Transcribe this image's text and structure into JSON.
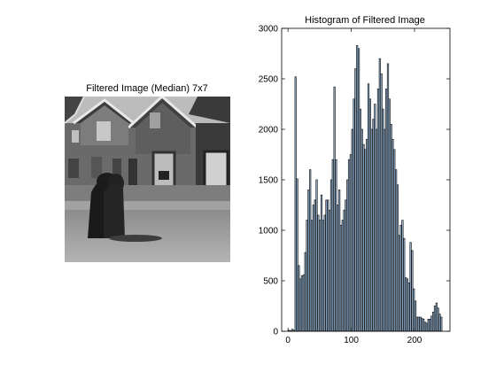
{
  "left_panel": {
    "title": "Filtered Image (Median) 7x7",
    "image_description": "grayscale street scene with gabled houses and two figures in dark cloaks"
  },
  "chart_data": {
    "type": "bar",
    "title": "Histogram of Filtered Image",
    "xlabel": "",
    "ylabel": "",
    "xlim": [
      -10,
      256
    ],
    "ylim": [
      0,
      3000
    ],
    "xticks": [
      0,
      100,
      200
    ],
    "yticks": [
      0,
      500,
      1000,
      1500,
      2000,
      2500,
      3000
    ],
    "bar_color": "#9fc3e6",
    "edge_color": "#1a1a1a",
    "bin_width": 2.56,
    "bins": [
      {
        "x": 2,
        "y": 10
      },
      {
        "x": 4.6,
        "y": 5
      },
      {
        "x": 7.1,
        "y": 20
      },
      {
        "x": 9.7,
        "y": 10
      },
      {
        "x": 12.2,
        "y": 2520
      },
      {
        "x": 14.8,
        "y": 1510
      },
      {
        "x": 17.4,
        "y": 650
      },
      {
        "x": 19.9,
        "y": 520
      },
      {
        "x": 22.5,
        "y": 550
      },
      {
        "x": 25,
        "y": 560
      },
      {
        "x": 27.6,
        "y": 780
      },
      {
        "x": 30.2,
        "y": 1100
      },
      {
        "x": 32.7,
        "y": 1400
      },
      {
        "x": 35.3,
        "y": 1600
      },
      {
        "x": 37.8,
        "y": 1100
      },
      {
        "x": 40.4,
        "y": 1250
      },
      {
        "x": 43,
        "y": 1300
      },
      {
        "x": 45.5,
        "y": 1500
      },
      {
        "x": 48.1,
        "y": 1150
      },
      {
        "x": 50.6,
        "y": 1100
      },
      {
        "x": 53.2,
        "y": 1350
      },
      {
        "x": 55.8,
        "y": 1100
      },
      {
        "x": 58.3,
        "y": 1150
      },
      {
        "x": 60.9,
        "y": 1300
      },
      {
        "x": 63.4,
        "y": 1300
      },
      {
        "x": 66,
        "y": 1200
      },
      {
        "x": 68.6,
        "y": 1500
      },
      {
        "x": 71.1,
        "y": 1700
      },
      {
        "x": 73.7,
        "y": 2420
      },
      {
        "x": 76.2,
        "y": 1700
      },
      {
        "x": 78.8,
        "y": 1250
      },
      {
        "x": 81.4,
        "y": 1400
      },
      {
        "x": 83.9,
        "y": 1050
      },
      {
        "x": 86.5,
        "y": 1100
      },
      {
        "x": 89,
        "y": 1200
      },
      {
        "x": 91.6,
        "y": 1300
      },
      {
        "x": 94.2,
        "y": 1500
      },
      {
        "x": 96.7,
        "y": 1700
      },
      {
        "x": 99.3,
        "y": 1750
      },
      {
        "x": 101.8,
        "y": 2000
      },
      {
        "x": 104.4,
        "y": 2300
      },
      {
        "x": 107,
        "y": 2600
      },
      {
        "x": 109.5,
        "y": 2830
      },
      {
        "x": 112.1,
        "y": 2800
      },
      {
        "x": 114.6,
        "y": 2200
      },
      {
        "x": 117.2,
        "y": 2000
      },
      {
        "x": 119.8,
        "y": 1850
      },
      {
        "x": 122.3,
        "y": 1800
      },
      {
        "x": 124.9,
        "y": 1900
      },
      {
        "x": 127.4,
        "y": 2450
      },
      {
        "x": 130,
        "y": 2300
      },
      {
        "x": 132.6,
        "y": 2000
      },
      {
        "x": 135.1,
        "y": 2100
      },
      {
        "x": 137.7,
        "y": 2250
      },
      {
        "x": 140.2,
        "y": 2000
      },
      {
        "x": 142.8,
        "y": 2400
      },
      {
        "x": 145.4,
        "y": 2700
      },
      {
        "x": 147.9,
        "y": 2550
      },
      {
        "x": 150.5,
        "y": 2200
      },
      {
        "x": 153,
        "y": 2000
      },
      {
        "x": 155.6,
        "y": 2400
      },
      {
        "x": 158.2,
        "y": 2650
      },
      {
        "x": 160.7,
        "y": 2300
      },
      {
        "x": 163.3,
        "y": 2050
      },
      {
        "x": 165.8,
        "y": 1900
      },
      {
        "x": 168.4,
        "y": 1800
      },
      {
        "x": 171,
        "y": 1600
      },
      {
        "x": 173.5,
        "y": 1450
      },
      {
        "x": 176.1,
        "y": 950
      },
      {
        "x": 178.6,
        "y": 1050
      },
      {
        "x": 181.2,
        "y": 1100
      },
      {
        "x": 183.8,
        "y": 920
      },
      {
        "x": 186.3,
        "y": 530
      },
      {
        "x": 188.9,
        "y": 520
      },
      {
        "x": 191.4,
        "y": 480
      },
      {
        "x": 194,
        "y": 880
      },
      {
        "x": 196.6,
        "y": 800
      },
      {
        "x": 199.1,
        "y": 420
      },
      {
        "x": 201.7,
        "y": 300
      },
      {
        "x": 204.2,
        "y": 140
      },
      {
        "x": 206.8,
        "y": 140
      },
      {
        "x": 209.4,
        "y": 140
      },
      {
        "x": 211.9,
        "y": 130
      },
      {
        "x": 214.5,
        "y": 120
      },
      {
        "x": 217,
        "y": 90
      },
      {
        "x": 219.6,
        "y": 80
      },
      {
        "x": 222.2,
        "y": 120
      },
      {
        "x": 224.7,
        "y": 120
      },
      {
        "x": 227.3,
        "y": 150
      },
      {
        "x": 229.8,
        "y": 190
      },
      {
        "x": 232.4,
        "y": 250
      },
      {
        "x": 235,
        "y": 280
      },
      {
        "x": 237.5,
        "y": 230
      },
      {
        "x": 240.1,
        "y": 170
      },
      {
        "x": 242.6,
        "y": 140
      }
    ]
  }
}
